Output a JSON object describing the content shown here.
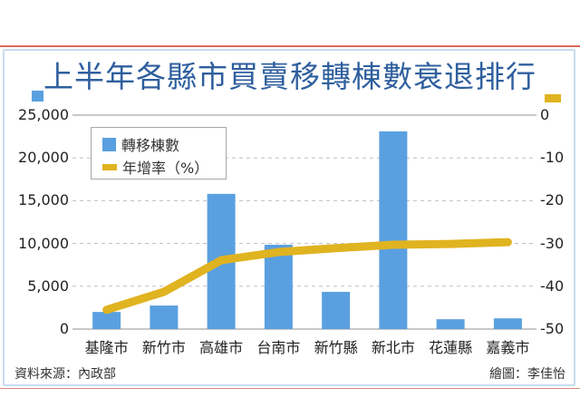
{
  "title": "上半年各縣市買賣移轉棟數衰退排行",
  "legend": {
    "bar_label": "轉移棟數",
    "line_label": "年增率（%）"
  },
  "left_axis_ticks": [
    "25,000",
    "20,000",
    "15,000",
    "10,000",
    "5,000",
    "0"
  ],
  "right_axis_ticks": [
    "0",
    "-10",
    "-20",
    "-30",
    "-40",
    "-50"
  ],
  "categories": [
    "基隆市",
    "新竹市",
    "高雄市",
    "台南市",
    "新竹縣",
    "新北市",
    "花蓮縣",
    "嘉義市"
  ],
  "footer": {
    "source": "資料來源：內政部",
    "credit": "繪圖：李佳怡"
  },
  "colors": {
    "bar": "#5aa0e0",
    "line": "#e0b320",
    "title": "#2f5f9e"
  },
  "chart_data": {
    "type": "bar",
    "title": "上半年各縣市買賣移轉棟數衰退排行",
    "categories": [
      "基隆市",
      "新竹市",
      "高雄市",
      "台南市",
      "新竹縣",
      "新北市",
      "花蓮縣",
      "嘉義市"
    ],
    "series": [
      {
        "name": "轉移棟數",
        "type": "bar",
        "axis": "left",
        "values": [
          2000,
          2750,
          15800,
          9850,
          4350,
          23100,
          1150,
          1250
        ]
      },
      {
        "name": "年增率（%）",
        "type": "line",
        "axis": "right",
        "values": [
          -45.5,
          -41.3,
          -33.9,
          -32.0,
          -31.1,
          -30.3,
          -30.1,
          -29.7
        ]
      }
    ],
    "xlabel": "",
    "ylabel_left": "",
    "ylabel_right": "",
    "ylim_left": [
      0,
      25000
    ],
    "ylim_right": [
      -50,
      0
    ],
    "grid": true,
    "legend_position": "upper-left",
    "annotations": [
      "資料來源：內政部",
      "繪圖：李佳怡"
    ]
  }
}
